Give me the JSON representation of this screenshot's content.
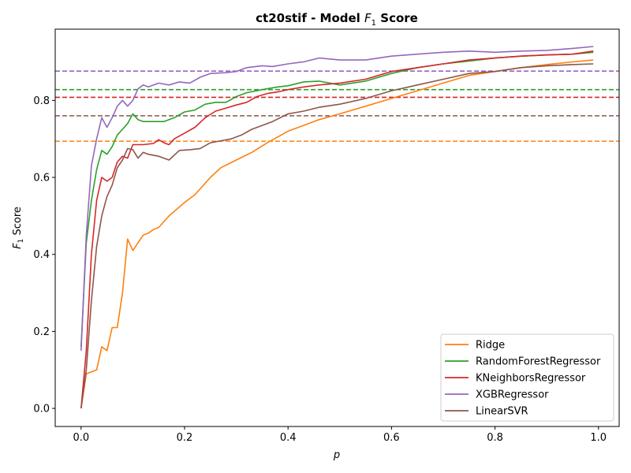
{
  "chart_data": {
    "type": "line",
    "title_main": "ct20stif - Model ",
    "title_sym": "F",
    "title_sub": "1",
    "title_end": " Score",
    "xlabel": "p",
    "ylabel_sym": "F",
    "ylabel_sub": "1",
    "ylabel_end": " Score",
    "xlim": [
      -0.05,
      1.04
    ],
    "ylim": [
      -0.047,
      0.985
    ],
    "xticks": [
      0.0,
      0.2,
      0.4,
      0.6,
      0.8,
      1.0
    ],
    "xtick_labels": [
      "0.0",
      "0.2",
      "0.4",
      "0.6",
      "0.8",
      "1.0"
    ],
    "yticks": [
      0.0,
      0.2,
      0.4,
      0.6,
      0.8
    ],
    "ytick_labels": [
      "0.0",
      "0.2",
      "0.4",
      "0.6",
      "0.8"
    ],
    "grid": false,
    "legend_position": "lower-right",
    "series": [
      {
        "name": "Ridge",
        "color": "#ff7f0e",
        "baseline": 0.694,
        "points": [
          [
            0,
            0.0
          ],
          [
            0.01,
            0.09
          ],
          [
            0.02,
            0.095
          ],
          [
            0.03,
            0.1
          ],
          [
            0.04,
            0.16
          ],
          [
            0.05,
            0.15
          ],
          [
            0.06,
            0.21
          ],
          [
            0.07,
            0.21
          ],
          [
            0.08,
            0.3
          ],
          [
            0.09,
            0.44
          ],
          [
            0.1,
            0.41
          ],
          [
            0.11,
            0.43
          ],
          [
            0.12,
            0.45
          ],
          [
            0.13,
            0.455
          ],
          [
            0.14,
            0.465
          ],
          [
            0.15,
            0.47
          ],
          [
            0.17,
            0.5
          ],
          [
            0.2,
            0.535
          ],
          [
            0.22,
            0.555
          ],
          [
            0.25,
            0.6
          ],
          [
            0.27,
            0.625
          ],
          [
            0.3,
            0.645
          ],
          [
            0.33,
            0.665
          ],
          [
            0.36,
            0.69
          ],
          [
            0.4,
            0.72
          ],
          [
            0.43,
            0.735
          ],
          [
            0.46,
            0.75
          ],
          [
            0.5,
            0.765
          ],
          [
            0.55,
            0.785
          ],
          [
            0.6,
            0.805
          ],
          [
            0.65,
            0.825
          ],
          [
            0.7,
            0.845
          ],
          [
            0.75,
            0.865
          ],
          [
            0.8,
            0.875
          ],
          [
            0.85,
            0.885
          ],
          [
            0.9,
            0.893
          ],
          [
            0.95,
            0.9
          ],
          [
            0.99,
            0.905
          ]
        ]
      },
      {
        "name": "RandomForestRegressor",
        "color": "#2ca02c",
        "baseline": 0.828,
        "points": [
          [
            0,
            0.16
          ],
          [
            0.01,
            0.43
          ],
          [
            0.02,
            0.54
          ],
          [
            0.03,
            0.62
          ],
          [
            0.04,
            0.67
          ],
          [
            0.05,
            0.66
          ],
          [
            0.06,
            0.68
          ],
          [
            0.07,
            0.71
          ],
          [
            0.08,
            0.725
          ],
          [
            0.09,
            0.74
          ],
          [
            0.1,
            0.765
          ],
          [
            0.11,
            0.75
          ],
          [
            0.12,
            0.745
          ],
          [
            0.14,
            0.745
          ],
          [
            0.16,
            0.745
          ],
          [
            0.18,
            0.755
          ],
          [
            0.2,
            0.77
          ],
          [
            0.22,
            0.775
          ],
          [
            0.24,
            0.79
          ],
          [
            0.26,
            0.795
          ],
          [
            0.28,
            0.795
          ],
          [
            0.3,
            0.81
          ],
          [
            0.32,
            0.82
          ],
          [
            0.35,
            0.828
          ],
          [
            0.38,
            0.835
          ],
          [
            0.4,
            0.838
          ],
          [
            0.43,
            0.848
          ],
          [
            0.46,
            0.85
          ],
          [
            0.5,
            0.84
          ],
          [
            0.55,
            0.85
          ],
          [
            0.6,
            0.87
          ],
          [
            0.65,
            0.885
          ],
          [
            0.7,
            0.895
          ],
          [
            0.75,
            0.902
          ],
          [
            0.8,
            0.91
          ],
          [
            0.85,
            0.915
          ],
          [
            0.9,
            0.918
          ],
          [
            0.95,
            0.92
          ],
          [
            0.99,
            0.925
          ]
        ]
      },
      {
        "name": "KNeighborsRegressor",
        "color": "#d62728",
        "baseline": 0.808,
        "points": [
          [
            0,
            0.0
          ],
          [
            0.01,
            0.15
          ],
          [
            0.02,
            0.4
          ],
          [
            0.03,
            0.54
          ],
          [
            0.04,
            0.6
          ],
          [
            0.05,
            0.59
          ],
          [
            0.06,
            0.6
          ],
          [
            0.07,
            0.64
          ],
          [
            0.08,
            0.655
          ],
          [
            0.09,
            0.65
          ],
          [
            0.1,
            0.685
          ],
          [
            0.12,
            0.685
          ],
          [
            0.14,
            0.688
          ],
          [
            0.15,
            0.698
          ],
          [
            0.16,
            0.69
          ],
          [
            0.17,
            0.685
          ],
          [
            0.18,
            0.7
          ],
          [
            0.2,
            0.715
          ],
          [
            0.22,
            0.73
          ],
          [
            0.24,
            0.755
          ],
          [
            0.26,
            0.772
          ],
          [
            0.28,
            0.78
          ],
          [
            0.3,
            0.788
          ],
          [
            0.32,
            0.795
          ],
          [
            0.34,
            0.81
          ],
          [
            0.36,
            0.818
          ],
          [
            0.38,
            0.822
          ],
          [
            0.4,
            0.828
          ],
          [
            0.43,
            0.835
          ],
          [
            0.46,
            0.84
          ],
          [
            0.5,
            0.845
          ],
          [
            0.55,
            0.855
          ],
          [
            0.6,
            0.875
          ],
          [
            0.65,
            0.885
          ],
          [
            0.7,
            0.895
          ],
          [
            0.75,
            0.905
          ],
          [
            0.8,
            0.91
          ],
          [
            0.85,
            0.915
          ],
          [
            0.9,
            0.918
          ],
          [
            0.95,
            0.92
          ],
          [
            0.99,
            0.928
          ]
        ]
      },
      {
        "name": "XGBRegressor",
        "color": "#9467bd",
        "baseline": 0.876,
        "points": [
          [
            0,
            0.15
          ],
          [
            0.01,
            0.45
          ],
          [
            0.02,
            0.63
          ],
          [
            0.03,
            0.7
          ],
          [
            0.04,
            0.755
          ],
          [
            0.05,
            0.73
          ],
          [
            0.06,
            0.755
          ],
          [
            0.07,
            0.785
          ],
          [
            0.08,
            0.8
          ],
          [
            0.09,
            0.785
          ],
          [
            0.1,
            0.8
          ],
          [
            0.11,
            0.83
          ],
          [
            0.12,
            0.84
          ],
          [
            0.13,
            0.835
          ],
          [
            0.15,
            0.845
          ],
          [
            0.17,
            0.84
          ],
          [
            0.19,
            0.848
          ],
          [
            0.21,
            0.845
          ],
          [
            0.23,
            0.86
          ],
          [
            0.25,
            0.87
          ],
          [
            0.28,
            0.872
          ],
          [
            0.3,
            0.875
          ],
          [
            0.32,
            0.885
          ],
          [
            0.35,
            0.89
          ],
          [
            0.37,
            0.888
          ],
          [
            0.4,
            0.895
          ],
          [
            0.43,
            0.9
          ],
          [
            0.46,
            0.91
          ],
          [
            0.5,
            0.905
          ],
          [
            0.55,
            0.905
          ],
          [
            0.6,
            0.915
          ],
          [
            0.65,
            0.92
          ],
          [
            0.7,
            0.925
          ],
          [
            0.75,
            0.928
          ],
          [
            0.8,
            0.925
          ],
          [
            0.85,
            0.928
          ],
          [
            0.9,
            0.93
          ],
          [
            0.95,
            0.935
          ],
          [
            0.99,
            0.94
          ]
        ]
      },
      {
        "name": "LinearSVR",
        "color": "#8c564b",
        "baseline": 0.76,
        "points": [
          [
            0,
            0.0
          ],
          [
            0.01,
            0.1
          ],
          [
            0.02,
            0.28
          ],
          [
            0.03,
            0.42
          ],
          [
            0.04,
            0.5
          ],
          [
            0.05,
            0.55
          ],
          [
            0.06,
            0.58
          ],
          [
            0.07,
            0.625
          ],
          [
            0.08,
            0.645
          ],
          [
            0.09,
            0.675
          ],
          [
            0.1,
            0.672
          ],
          [
            0.11,
            0.65
          ],
          [
            0.12,
            0.665
          ],
          [
            0.13,
            0.66
          ],
          [
            0.15,
            0.655
          ],
          [
            0.17,
            0.645
          ],
          [
            0.19,
            0.67
          ],
          [
            0.21,
            0.672
          ],
          [
            0.23,
            0.675
          ],
          [
            0.25,
            0.69
          ],
          [
            0.27,
            0.695
          ],
          [
            0.29,
            0.7
          ],
          [
            0.31,
            0.71
          ],
          [
            0.33,
            0.725
          ],
          [
            0.35,
            0.735
          ],
          [
            0.37,
            0.745
          ],
          [
            0.4,
            0.765
          ],
          [
            0.43,
            0.772
          ],
          [
            0.46,
            0.782
          ],
          [
            0.5,
            0.79
          ],
          [
            0.55,
            0.805
          ],
          [
            0.6,
            0.825
          ],
          [
            0.65,
            0.84
          ],
          [
            0.7,
            0.855
          ],
          [
            0.75,
            0.87
          ],
          [
            0.8,
            0.875
          ],
          [
            0.85,
            0.885
          ],
          [
            0.9,
            0.89
          ],
          [
            0.95,
            0.893
          ],
          [
            0.99,
            0.895
          ]
        ]
      }
    ]
  }
}
